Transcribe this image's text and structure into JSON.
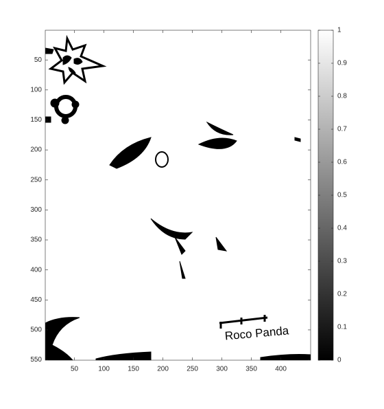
{
  "chart_data": {
    "type": "image",
    "xlim": [
      0.5,
      450.5
    ],
    "ylim": [
      0.5,
      550.5
    ],
    "xticks": [
      50,
      100,
      150,
      200,
      250,
      300,
      350,
      400
    ],
    "yticks": [
      50,
      100,
      150,
      200,
      250,
      300,
      350,
      400,
      450,
      500,
      550
    ],
    "y_reversed": true,
    "image_text": "Roco Panda",
    "colorbar": {
      "clim": [
        0,
        1
      ],
      "ticks": [
        0,
        0.1,
        0.2,
        0.3,
        0.4,
        0.5,
        0.6,
        0.7,
        0.8,
        0.9,
        1
      ],
      "colormap": [
        "#000000",
        "#ffffff"
      ]
    }
  }
}
